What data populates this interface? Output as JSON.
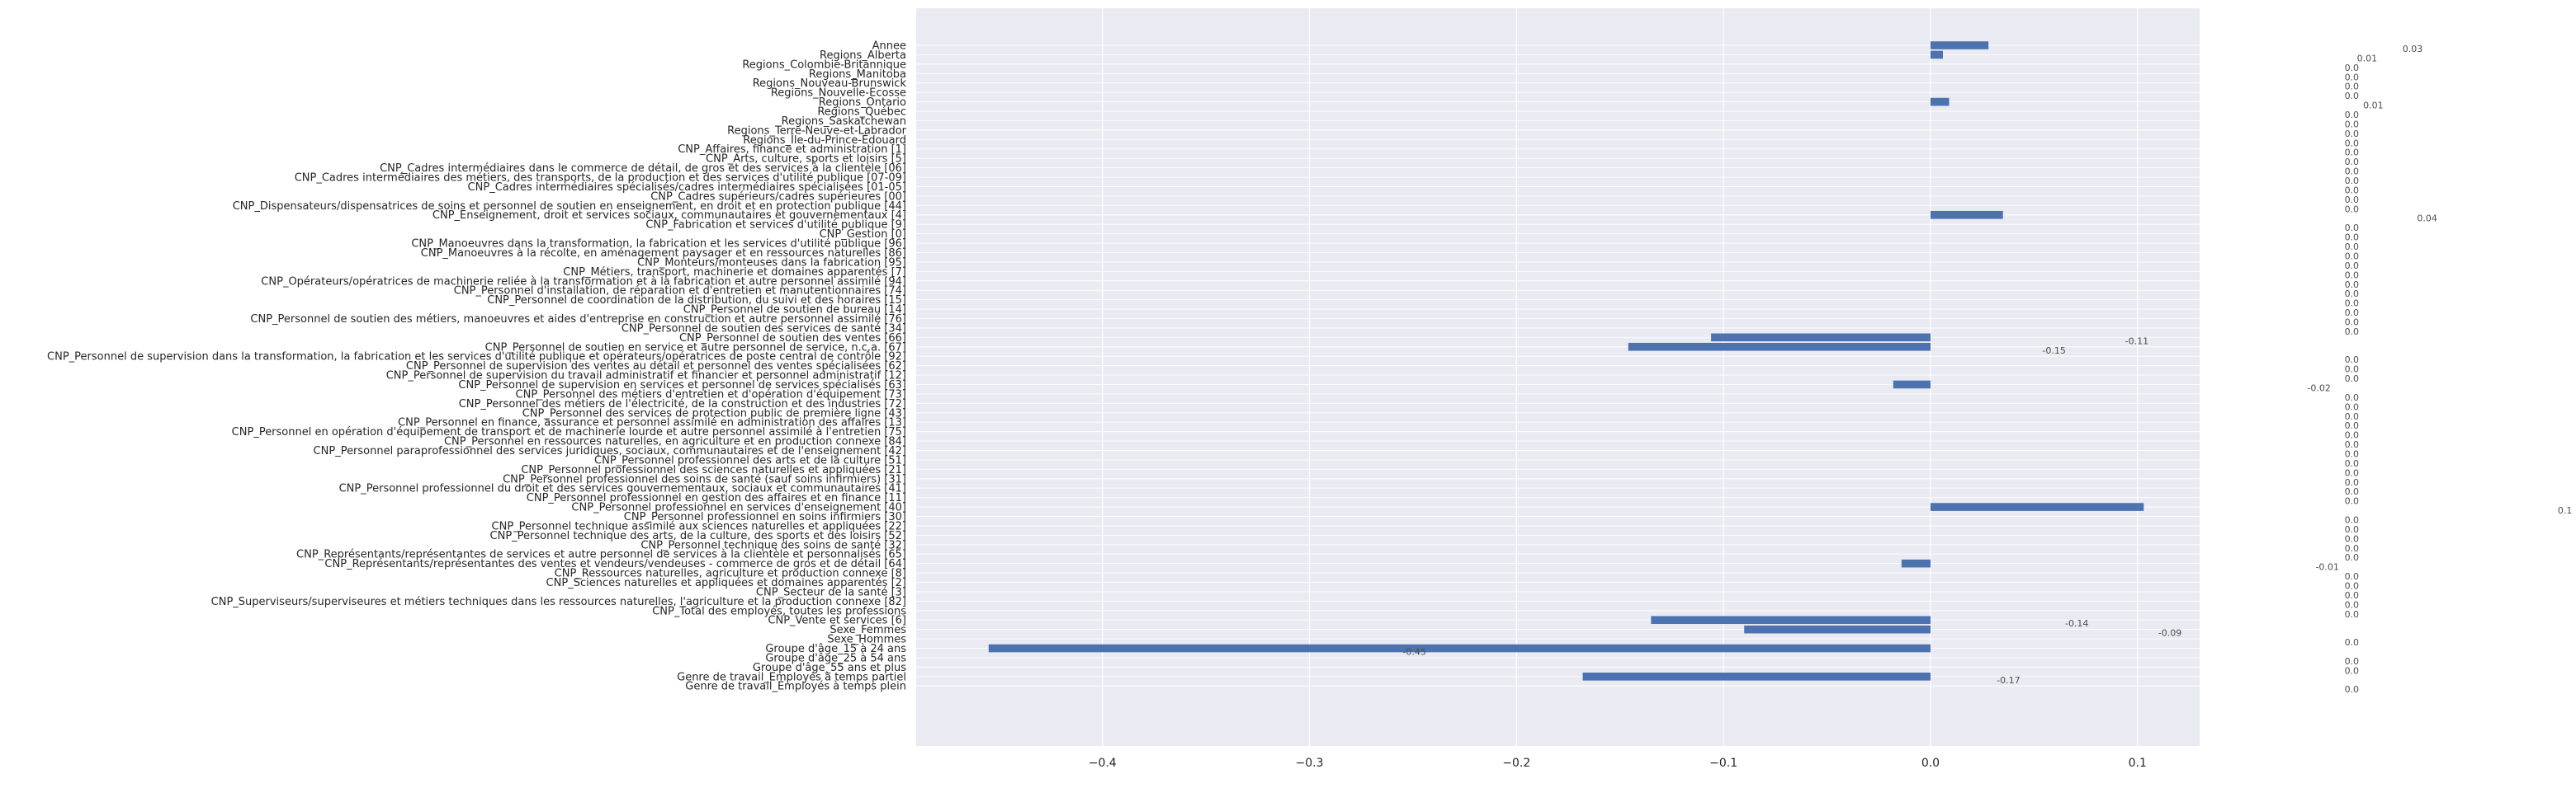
{
  "chart_data": {
    "type": "bar",
    "orientation": "horizontal",
    "title": "",
    "xlabel": "",
    "ylabel": "",
    "xlim": [
      -0.49,
      0.13
    ],
    "xticks": [
      -0.4,
      -0.3,
      -0.2,
      -0.1,
      0.0,
      0.1
    ],
    "xtick_labels": [
      "−0.4",
      "−0.3",
      "−0.2",
      "−0.1",
      "0.0",
      "0.1"
    ],
    "grid": true,
    "legend": "none",
    "colors": {
      "bar": "#4c72b0",
      "plot_bg": "#eaeaf2",
      "grid": "#ffffff",
      "text": "#262626",
      "value_label": "#4d4d4d"
    },
    "categories": [
      "Annee",
      "Regions_Alberta",
      "Regions_Colombie-Britannique",
      "Regions_Manitoba",
      "Regions_Nouveau-Brunswick",
      "Regions_Nouvelle-Ecosse",
      "Regions_Ontario",
      "Regions_Québec",
      "Regions_Saskatchewan",
      "Regions_Terre-Neuve-et-Labrador",
      "Regions_Île-du-Prince-Édouard",
      "CNP_Affaires, finance et administration [1]",
      "CNP_Arts, culture, sports et loisirs [5]",
      "CNP_Cadres intermédiaires dans le commerce de détail, de gros et des services à la clientèle [06]",
      "CNP_Cadres intermédiaires des métiers, des transports, de la production et des services d'utilité publique [07-09]",
      "CNP_Cadres intermédiaires spécialisés/cadres intermédiaires spécialisées [01-05]",
      "CNP_Cadres supérieurs/cadres supérieures [00]",
      "CNP_Dispensateurs/dispensatrices de soins et personnel de soutien en enseignement, en droit et en protection publique [44]",
      "CNP_Enseignement, droit et services sociaux, communautaires et gouvernementaux [4]",
      "CNP_Fabrication et services d'utilité publique [9]",
      "CNP_Gestion [0]",
      "CNP_Manoeuvres dans la transformation, la fabrication et les services d'utilité publique [96]",
      "CNP_Manoeuvres à la récolte, en aménagement paysager et en ressources naturelles [86]",
      "CNP_Monteurs/monteuses dans la fabrication [95]",
      "CNP_Métiers, transport, machinerie et domaines apparentés [7]",
      "CNP_Opérateurs/opératrices de machinerie reliée à la transformation et à la fabrication et autre personnel assimilé [94]",
      "CNP_Personnel d'installation, de réparation et d'entretien et manutentionnaires [74]",
      "CNP_Personnel de coordination de la distribution, du suivi et des horaires [15]",
      "CNP_Personnel de soutien de bureau [14]",
      "CNP_Personnel de soutien des métiers, manoeuvres et aides d'entreprise en construction et autre personnel assimilé [76]",
      "CNP_Personnel de soutien des services de santé [34]",
      "CNP_Personnel de soutien des ventes [66]",
      "CNP_Personnel de soutien en service et autre personnel de service, n.c.a. [67]",
      "CNP_Personnel de supervision dans la transformation, la fabrication et les services d'utilité publique et opérateurs/opératrices de poste central de contrôle [92]",
      "CNP_Personnel de supervision des ventes au détail et personnel des ventes spécialisées [62]",
      "CNP_Personnel de supervision du travail administratif et financier et personnel administratif [12]",
      "CNP_Personnel de supervision en services et personnel de services spécialisés [63]",
      "CNP_Personnel des métiers d'entretien et d'opération d'équipement [73]",
      "CNP_Personnel des métiers de l'électricité, de la construction et des industries [72]",
      "CNP_Personnel des services de protection public de première ligne [43]",
      "CNP_Personnel en finance, assurance et personnel assimilé en administration des affaires [13]",
      "CNP_Personnel en opération d'équipement de transport et de machinerie lourde et autre personnel assimilé à l'entretien [75]",
      "CNP_Personnel en ressources naturelles, en agriculture et en production connexe [84]",
      "CNP_Personnel paraprofessionnel des services juridiques, sociaux, communautaires et de l'enseignement [42]",
      "CNP_Personnel professionnel des arts et de la culture [51]",
      "CNP_Personnel professionnel des sciences naturelles et appliquées [21]",
      "CNP_Personnel professionnel des soins de santé (sauf soins infirmiers) [31]",
      "CNP_Personnel professionnel du droit et des services gouvernementaux, sociaux et communautaires [41]",
      "CNP_Personnel professionnel en gestion des affaires et en finance [11]",
      "CNP_Personnel professionnel en services d'enseignement [40]",
      "CNP_Personnel professionnel en soins infirmiers [30]",
      "CNP_Personnel technique assimilé aux sciences naturelles et appliquées [22]",
      "CNP_Personnel technique des arts, de la culture, des sports et des loisirs [52]",
      "CNP_Personnel technique des soins de santé [32]",
      "CNP_Représentants/représentantes de services et autre personnel de services à la clientèle et personnalisés [65]",
      "CNP_Représentants/représentantes des ventes et vendeurs/vendeuses - commerce de gros et de détail [64]",
      "CNP_Ressources naturelles, agriculture et production connexe [8]",
      "CNP_Sciences naturelles et appliquées et domaines apparentés [2]",
      "CNP_Secteur de la santé [3]",
      "CNP_Superviseurs/superviseures et métiers techniques dans les ressources naturelles, l'agriculture et la production connexe [82]",
      "CNP_Total des employés, toutes les professions",
      "CNP_Vente et services [6]",
      "Sexe_Femmes",
      "Sexe_Hommes",
      "Groupe d'âge_15 à 24 ans",
      "Groupe d'âge_25 à 54 ans",
      "Groupe d'âge_55 ans et plus",
      "Genre de travail_Employés à temps partiel",
      "Genre de travail_Employés à temps plein"
    ],
    "values": [
      0.028,
      0.006,
      0.0,
      0.0,
      0.0,
      0.0,
      0.009,
      0.0,
      0.0,
      0.0,
      0.0,
      0.0,
      0.0,
      0.0,
      0.0,
      0.0,
      0.0,
      0.0,
      0.035,
      0.0,
      0.0,
      0.0,
      0.0,
      0.0,
      0.0,
      0.0,
      0.0,
      0.0,
      0.0,
      0.0,
      0.0,
      -0.106,
      -0.146,
      0.0,
      0.0,
      0.0,
      -0.018,
      0.0,
      0.0,
      0.0,
      0.0,
      0.0,
      0.0,
      0.0,
      0.0,
      0.0,
      0.0,
      0.0,
      0.0,
      0.103,
      0.0,
      0.0,
      0.0,
      0.0,
      0.0,
      -0.014,
      0.0,
      0.0,
      0.0,
      0.0,
      0.0,
      -0.135,
      -0.09,
      0.0,
      -0.455,
      0.0,
      0.0,
      -0.168,
      0.0
    ],
    "value_labels": [
      "0.03",
      "0.01",
      "0.0",
      "0.0",
      "0.0",
      "0.0",
      "0.01",
      "0.0",
      "0.0",
      "0.0",
      "0.0",
      "0.0",
      "0.0",
      "0.0",
      "0.0",
      "0.0",
      "0.0",
      "0.0",
      "0.04",
      "0.0",
      "0.0",
      "0.0",
      "0.0",
      "0.0",
      "0.0",
      "0.0",
      "0.0",
      "0.0",
      "0.0",
      "0.0",
      "0.0",
      "-0.11",
      "-0.15",
      "0.0",
      "0.0",
      "0.0",
      "-0.02",
      "0.0",
      "0.0",
      "0.0",
      "0.0",
      "0.0",
      "0.0",
      "0.0",
      "0.0",
      "0.0",
      "0.0",
      "0.0",
      "0.0",
      "0.1",
      "0.0",
      "0.0",
      "0.0",
      "0.0",
      "0.0",
      "-0.01",
      "0.0",
      "0.0",
      "0.0",
      "0.0",
      "0.0",
      "-0.14",
      "-0.09",
      "0.0",
      "-0.45",
      "0.0",
      "0.0",
      "-0.17",
      "0.0"
    ]
  }
}
